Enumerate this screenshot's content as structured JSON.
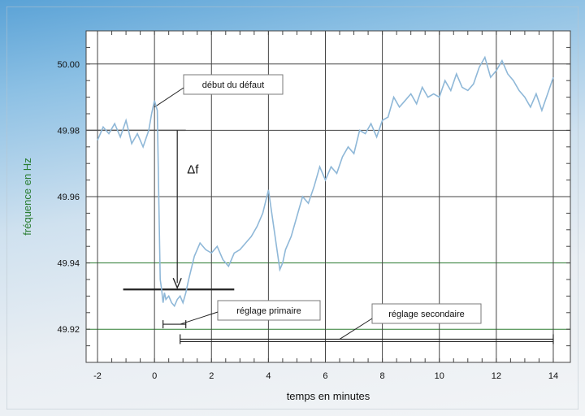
{
  "chart_data": {
    "type": "line",
    "title": "",
    "xlabel": "temps en minutes",
    "ylabel": "fréquence en Hz",
    "xlim": [
      -2.4,
      14.6
    ],
    "ylim": [
      49.91,
      50.01
    ],
    "x_ticks": [
      -2,
      0,
      2,
      4,
      6,
      8,
      10,
      12,
      14
    ],
    "x_tick_labels": [
      "-2",
      "0",
      "2",
      "4",
      "6",
      "8",
      "10",
      "12",
      "14"
    ],
    "y_ticks": [
      49.92,
      49.94,
      49.96,
      49.98,
      50.0
    ],
    "y_tick_labels": [
      "49.92",
      "49.94",
      "49.96",
      "49.98",
      "50.00"
    ],
    "grid": true,
    "series": [
      {
        "color": "#8fb8d8",
        "x": [
          -2.0,
          -1.8,
          -1.6,
          -1.4,
          -1.2,
          -1.0,
          -0.8,
          -0.6,
          -0.4,
          -0.2,
          -0.1,
          0.0,
          0.1,
          0.15,
          0.2,
          0.25,
          0.3,
          0.35,
          0.4,
          0.5,
          0.6,
          0.7,
          0.8,
          0.9,
          1.0,
          1.1,
          1.2,
          1.4,
          1.6,
          1.8,
          2.0,
          2.2,
          2.4,
          2.6,
          2.8,
          3.0,
          3.2,
          3.4,
          3.6,
          3.8,
          4.0,
          4.2,
          4.4,
          4.5,
          4.6,
          4.8,
          5.0,
          5.2,
          5.4,
          5.6,
          5.8,
          6.0,
          6.2,
          6.4,
          6.6,
          6.8,
          7.0,
          7.2,
          7.4,
          7.6,
          7.8,
          8.0,
          8.2,
          8.4,
          8.6,
          8.8,
          9.0,
          9.2,
          9.4,
          9.6,
          9.8,
          10.0,
          10.2,
          10.4,
          10.6,
          10.8,
          11.0,
          11.2,
          11.4,
          11.6,
          11.8,
          12.0,
          12.2,
          12.4,
          12.6,
          12.8,
          13.0,
          13.2,
          13.4,
          13.6,
          13.8,
          14.0
        ],
        "values": [
          49.977,
          49.981,
          49.979,
          49.982,
          49.978,
          49.983,
          49.976,
          49.979,
          49.975,
          49.98,
          49.985,
          49.989,
          49.986,
          49.96,
          49.935,
          49.932,
          49.928,
          49.931,
          49.929,
          49.93,
          49.928,
          49.927,
          49.929,
          49.93,
          49.928,
          49.931,
          49.935,
          49.942,
          49.946,
          49.944,
          49.943,
          49.945,
          49.941,
          49.939,
          49.943,
          49.944,
          49.946,
          49.948,
          49.951,
          49.955,
          49.962,
          49.95,
          49.938,
          49.94,
          49.944,
          49.948,
          49.954,
          49.96,
          49.958,
          49.963,
          49.969,
          49.965,
          49.969,
          49.967,
          49.972,
          49.975,
          49.973,
          49.98,
          49.979,
          49.982,
          49.978,
          49.983,
          49.984,
          49.99,
          49.987,
          49.989,
          49.991,
          49.988,
          49.993,
          49.99,
          49.991,
          49.99,
          49.995,
          49.992,
          49.997,
          49.993,
          49.992,
          49.994,
          49.999,
          50.002,
          49.996,
          49.998,
          50.001,
          49.997,
          49.995,
          49.992,
          49.99,
          49.987,
          49.991,
          49.986,
          49.991,
          49.996
        ]
      }
    ],
    "annotations": [
      {
        "text": "début du défaut"
      },
      {
        "text": "Δf"
      },
      {
        "text": "réglage primaire"
      },
      {
        "text": "réglage secondaire"
      }
    ]
  }
}
